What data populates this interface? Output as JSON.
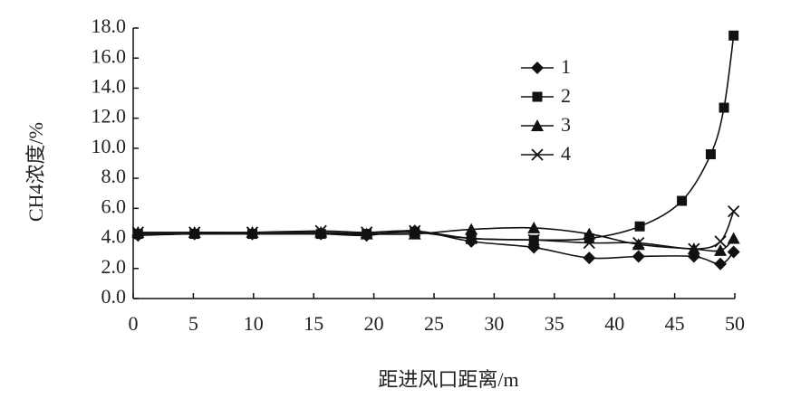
{
  "chart_data": {
    "type": "line",
    "xlabel": "距进风口距离/m",
    "ylabel": "CH4浓度/%",
    "xlim": [
      0,
      50
    ],
    "xticks": [
      0,
      5,
      10,
      15,
      20,
      25,
      30,
      35,
      40,
      45,
      50
    ],
    "ylim": [
      0,
      18
    ],
    "yticks": [
      {
        "value": 0,
        "label": "0.0"
      },
      {
        "value": 2,
        "label": "2.0"
      },
      {
        "value": 4,
        "label": "4.0"
      },
      {
        "value": 6,
        "label": "6.0"
      },
      {
        "value": 8,
        "label": "8.0"
      },
      {
        "value": 10,
        "label": "10.0"
      },
      {
        "value": 12,
        "label": "12.0"
      },
      {
        "value": 14,
        "label": "14.0"
      },
      {
        "value": 16,
        "label": "16.0"
      },
      {
        "value": 18,
        "label": "18.0"
      }
    ],
    "x": [
      0.4,
      5.1,
      9.9,
      15.6,
      19.4,
      23.4,
      28.1,
      33.3,
      37.9,
      42.0,
      46.6,
      48.8,
      49.9
    ],
    "smooth": true,
    "grid": false,
    "legend": "upper right",
    "series": [
      {
        "name": "1",
        "color": "#111111",
        "marker": "diamond",
        "values": [
          4.2,
          4.3,
          4.3,
          4.3,
          4.2,
          4.5,
          3.8,
          3.4,
          2.7,
          2.8,
          2.8,
          2.3,
          3.1
        ]
      },
      {
        "name": "2",
        "color": "#111111",
        "marker": "square",
        "x": [
          0.4,
          5.1,
          9.9,
          15.6,
          19.4,
          23.4,
          28.1,
          33.3,
          37.9,
          42.1,
          45.6,
          48.0,
          49.1,
          49.9
        ],
        "values": [
          4.3,
          4.3,
          4.3,
          4.3,
          4.3,
          4.4,
          4.0,
          3.9,
          4.0,
          4.8,
          6.5,
          9.6,
          12.7,
          17.5
        ]
      },
      {
        "name": "3",
        "color": "#111111",
        "marker": "triangle",
        "values": [
          4.4,
          4.4,
          4.4,
          4.4,
          4.3,
          4.3,
          4.6,
          4.7,
          4.3,
          3.6,
          3.3,
          3.2,
          4.0
        ]
      },
      {
        "name": "4",
        "color": "#111111",
        "marker": "x",
        "values": [
          4.4,
          4.4,
          4.4,
          4.5,
          4.4,
          4.5,
          4.0,
          3.9,
          3.7,
          3.7,
          3.3,
          3.8,
          5.8
        ]
      }
    ]
  }
}
